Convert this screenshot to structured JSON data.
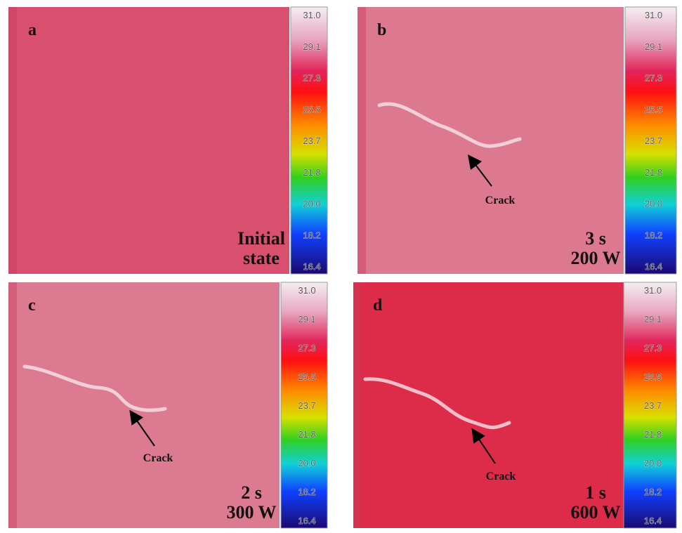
{
  "colorbar_labels": [
    "31.0",
    "29.1",
    "27.3",
    "25.5",
    "23.7",
    "21.8",
    "20.0",
    "18.2",
    "16.4"
  ],
  "panels": [
    {
      "label": "a",
      "caption": [
        "Initial",
        "state"
      ]
    },
    {
      "label": "b",
      "caption": [
        "3 s",
        "200 W"
      ],
      "crack": "Crack"
    },
    {
      "label": "c",
      "caption": [
        "2 s",
        "300 W"
      ],
      "crack": "Crack"
    },
    {
      "label": "d",
      "caption": [
        "1 s",
        "600 W"
      ],
      "crack": "Crack"
    }
  ]
}
